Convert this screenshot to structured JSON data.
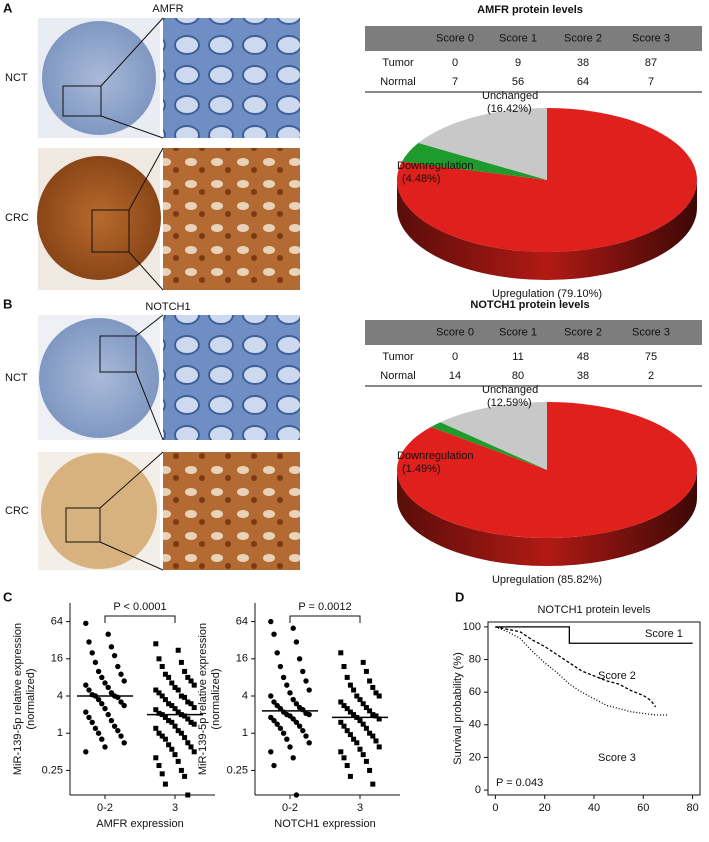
{
  "panels": [
    "A",
    "B",
    "C",
    "D"
  ],
  "ihc": [
    {
      "marker": "AMFR",
      "rows": [
        "NCT",
        "CRC"
      ]
    },
    {
      "marker": "NOTCH1",
      "rows": [
        "NCT",
        "CRC"
      ]
    }
  ],
  "tables": [
    {
      "title": "AMFR protein levels",
      "header": [
        "Score 0",
        "Score 1",
        "Score 2",
        "Score 3"
      ],
      "rows": [
        {
          "label": "Tumor",
          "cells": [
            0,
            9,
            38,
            87
          ]
        },
        {
          "label": "Normal",
          "cells": [
            7,
            56,
            64,
            7
          ]
        }
      ]
    },
    {
      "title": "NOTCH1 protein levels",
      "header": [
        "Score 0",
        "Score 1",
        "Score 2",
        "Score 3"
      ],
      "rows": [
        {
          "label": "Tumor",
          "cells": [
            0,
            11,
            48,
            75
          ]
        },
        {
          "label": "Normal",
          "cells": [
            14,
            80,
            38,
            2
          ]
        }
      ]
    }
  ],
  "chart_data": [
    {
      "type": "pie",
      "categories": [
        "Upregulation",
        "Downregulation",
        "Unchanged"
      ],
      "values": [
        79.1,
        4.48,
        16.42
      ],
      "value_labels": [
        "(79.10%)",
        "(4.48%)",
        "(16.42%)"
      ],
      "colors": [
        "#e0201c",
        "#1f9a2c",
        "#c8c8c8"
      ]
    },
    {
      "type": "pie",
      "categories": [
        "Upregulation",
        "Downregulation",
        "Unchanged"
      ],
      "values": [
        85.82,
        1.49,
        12.59
      ],
      "value_labels": [
        "(85.82%)",
        "(1.49%)",
        "(12.59%)"
      ],
      "colors": [
        "#e0201c",
        "#1f9a2c",
        "#c8c8c8"
      ]
    },
    {
      "type": "scatter",
      "ylabel": "MiR-139-5p relative expression",
      "ylabel_sub": "(normalized)",
      "xlabel": "AMFR expression",
      "categories": [
        "0-2",
        "3"
      ],
      "log_y": true,
      "ylim": [
        0.1,
        128
      ],
      "yticks": [
        0.25,
        1,
        4,
        16,
        64
      ],
      "annotation": "P < 0.0001",
      "medians": [
        4,
        2
      ],
      "markers": [
        "circle",
        "square"
      ],
      "groups": [
        {
          "values": [
            60,
            40,
            30,
            25,
            20,
            18,
            14,
            12,
            10,
            9,
            8,
            7,
            6.5,
            6,
            5.5,
            5,
            4.5,
            4.2,
            4,
            4,
            3.8,
            3.5,
            3.2,
            3,
            2.8,
            2.5,
            2.2,
            2,
            1.8,
            1.6,
            1.5,
            1.3,
            1.2,
            1.1,
            1,
            0.9,
            0.8,
            0.7,
            0.6,
            0.5
          ]
        },
        {
          "values": [
            28,
            22,
            16,
            14,
            12,
            10,
            9,
            8,
            8,
            7,
            6.5,
            6,
            5.5,
            5,
            5,
            4.5,
            4,
            4,
            3.8,
            3.5,
            3.2,
            3,
            3,
            2.8,
            2.6,
            2.5,
            2.4,
            2.2,
            2.1,
            2,
            2,
            1.9,
            1.8,
            1.7,
            1.6,
            1.5,
            1.5,
            1.4,
            1.3,
            1.2,
            1.1,
            1,
            1,
            0.9,
            0.85,
            0.8,
            0.7,
            0.65,
            0.6,
            0.55,
            0.5,
            0.45,
            0.4,
            0.35,
            0.3,
            0.25,
            0.22,
            0.2,
            0.15,
            0.1
          ]
        }
      ]
    },
    {
      "type": "scatter",
      "ylabel": "MiR-139-5p relative expression",
      "ylabel_sub": "(normalized)",
      "xlabel": "NOTCH1 expression",
      "categories": [
        "0-2",
        "3"
      ],
      "log_y": true,
      "ylim": [
        0.1,
        128
      ],
      "yticks": [
        0.25,
        1,
        4,
        16,
        64
      ],
      "annotation": "P = 0.0012",
      "medians": [
        2.3,
        1.8
      ],
      "markers": [
        "circle",
        "square"
      ],
      "groups": [
        {
          "values": [
            64,
            50,
            40,
            30,
            20,
            16,
            12,
            10,
            8,
            7,
            6,
            5,
            4.5,
            4,
            3.5,
            3.2,
            3,
            2.8,
            2.6,
            2.5,
            2.4,
            2.2,
            2.1,
            2,
            2,
            1.9,
            1.8,
            1.7,
            1.6,
            1.5,
            1.4,
            1.3,
            1.2,
            1.1,
            1,
            0.9,
            0.8,
            0.7,
            0.6,
            0.5,
            0.4,
            0.3,
            0.1
          ]
        },
        {
          "values": [
            20,
            14,
            12,
            10,
            8,
            7,
            6,
            5.5,
            5,
            4.5,
            4,
            4,
            3.5,
            3.2,
            3,
            2.8,
            2.6,
            2.5,
            2.3,
            2.2,
            2,
            2,
            1.9,
            1.8,
            1.7,
            1.6,
            1.5,
            1.4,
            1.3,
            1.2,
            1.1,
            1,
            0.95,
            0.9,
            0.8,
            0.75,
            0.7,
            0.6,
            0.55,
            0.5,
            0.45,
            0.4,
            0.35,
            0.3,
            0.25,
            0.2,
            0.15
          ]
        }
      ]
    },
    {
      "type": "line",
      "title": "NOTCH1 protein levels",
      "ylabel": "Survival probability (%)",
      "xlim": [
        -3,
        83
      ],
      "xticks": [
        0,
        20,
        40,
        60,
        80
      ],
      "ylim": [
        -3,
        103
      ],
      "yticks": [
        0,
        20,
        40,
        60,
        80,
        100
      ],
      "annotation": "P = 0.043",
      "series": [
        {
          "name": "Score 1",
          "dash": "none",
          "x": [
            0,
            30,
            30,
            80
          ],
          "values": [
            100,
            100,
            90,
            90
          ]
        },
        {
          "name": "Score 2",
          "dash": "3 2",
          "x": [
            0,
            10,
            15,
            20,
            25,
            30,
            35,
            40,
            45,
            50,
            55,
            60,
            63,
            65
          ],
          "values": [
            100,
            97,
            92,
            88,
            83,
            78,
            73,
            70,
            67,
            65,
            61,
            58,
            55,
            51
          ]
        },
        {
          "name": "Score 3",
          "dash": "1 2",
          "x": [
            0,
            5,
            10,
            15,
            20,
            25,
            30,
            35,
            40,
            45,
            50,
            55,
            60,
            65,
            70
          ],
          "values": [
            100,
            97,
            93,
            85,
            78,
            72,
            65,
            60,
            56,
            52,
            50,
            48,
            47,
            46,
            46
          ]
        }
      ]
    }
  ]
}
